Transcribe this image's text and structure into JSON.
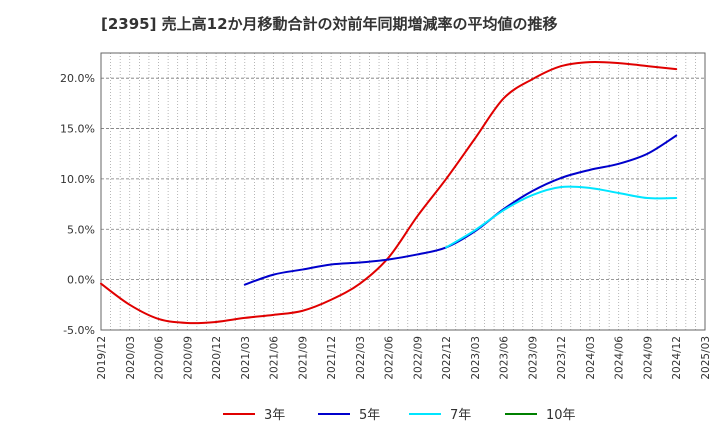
{
  "chart_data": {
    "type": "line",
    "title": "[2395]  売上高12か月移動合計の対前年同期増減率の平均値の推移",
    "xlabel": "",
    "ylabel": "",
    "ylim": [
      -0.05,
      0.225
    ],
    "yticks": [
      -0.05,
      0.0,
      0.05,
      0.1,
      0.15,
      0.2
    ],
    "ytick_labels": [
      "-5.0%",
      "0.0%",
      "5.0%",
      "10.0%",
      "15.0%",
      "20.0%"
    ],
    "xlim": [
      "2019/12",
      "2025/03"
    ],
    "xtick_labels": [
      "2019/12",
      "2020/03",
      "2020/06",
      "2020/09",
      "2020/12",
      "2021/03",
      "2021/06",
      "2021/09",
      "2021/12",
      "2022/03",
      "2022/06",
      "2022/09",
      "2022/12",
      "2023/03",
      "2023/06",
      "2023/09",
      "2023/12",
      "2024/03",
      "2024/06",
      "2024/09",
      "2024/12",
      "2025/03"
    ],
    "grid": true,
    "legend_position": "bottom",
    "series": [
      {
        "name": "3年",
        "color": "#e00000",
        "points": [
          [
            "2019/12",
            -0.004
          ],
          [
            "2020/03",
            -0.025
          ],
          [
            "2020/06",
            -0.039
          ],
          [
            "2020/09",
            -0.043
          ],
          [
            "2020/12",
            -0.042
          ],
          [
            "2021/03",
            -0.038
          ],
          [
            "2021/06",
            -0.035
          ],
          [
            "2021/09",
            -0.031
          ],
          [
            "2021/12",
            -0.02
          ],
          [
            "2022/03",
            -0.004
          ],
          [
            "2022/06",
            0.022
          ],
          [
            "2022/09",
            0.063
          ],
          [
            "2022/12",
            0.1
          ],
          [
            "2023/03",
            0.14
          ],
          [
            "2023/06",
            0.18
          ],
          [
            "2023/09",
            0.199
          ],
          [
            "2023/12",
            0.212
          ],
          [
            "2024/03",
            0.216
          ],
          [
            "2024/06",
            0.215
          ],
          [
            "2024/09",
            0.212
          ],
          [
            "2024/12",
            0.209
          ]
        ]
      },
      {
        "name": "5年",
        "color": "#0000cc",
        "points": [
          [
            "2021/03",
            -0.005
          ],
          [
            "2021/06",
            0.005
          ],
          [
            "2021/09",
            0.01
          ],
          [
            "2021/12",
            0.015
          ],
          [
            "2022/03",
            0.017
          ],
          [
            "2022/06",
            0.02
          ],
          [
            "2022/09",
            0.025
          ],
          [
            "2022/12",
            0.032
          ],
          [
            "2023/03",
            0.048
          ],
          [
            "2023/06",
            0.07
          ],
          [
            "2023/09",
            0.088
          ],
          [
            "2023/12",
            0.101
          ],
          [
            "2024/03",
            0.109
          ],
          [
            "2024/06",
            0.115
          ],
          [
            "2024/09",
            0.125
          ],
          [
            "2024/12",
            0.143
          ]
        ]
      },
      {
        "name": "7年",
        "color": "#00e5ff",
        "points": [
          [
            "2022/12",
            0.032
          ],
          [
            "2023/03",
            0.049
          ],
          [
            "2023/06",
            0.069
          ],
          [
            "2023/09",
            0.084
          ],
          [
            "2023/12",
            0.092
          ],
          [
            "2024/03",
            0.091
          ],
          [
            "2024/06",
            0.086
          ],
          [
            "2024/09",
            0.081
          ],
          [
            "2024/12",
            0.081
          ]
        ]
      },
      {
        "name": "10年",
        "color": "#008000",
        "points": []
      }
    ]
  }
}
